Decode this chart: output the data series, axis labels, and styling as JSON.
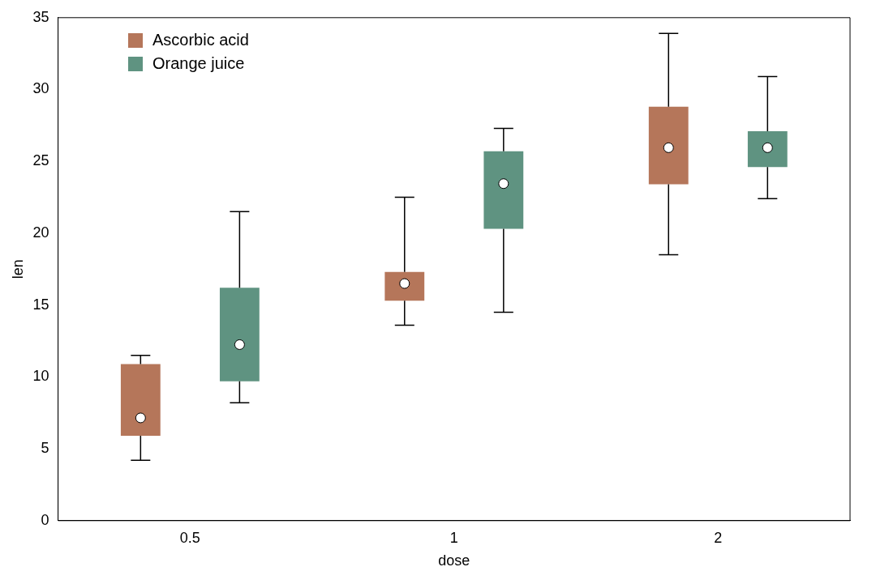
{
  "chart_data": {
    "type": "box",
    "xlabel": "dose",
    "ylabel": "len",
    "categories": [
      "0.5",
      "1",
      "2"
    ],
    "ylim": [
      0,
      35
    ],
    "yticks": [
      0,
      5,
      10,
      15,
      20,
      25,
      30,
      35
    ],
    "grid": false,
    "legend": "top left",
    "series": [
      {
        "name": "Ascorbic acid",
        "color": "#b5765a",
        "boxes": [
          {
            "low": 4.2,
            "q1": 5.9,
            "median": 7.15,
            "q3": 10.9,
            "high": 11.5
          },
          {
            "low": 13.6,
            "q1": 15.3,
            "median": 16.5,
            "q3": 17.3,
            "high": 22.5
          },
          {
            "low": 18.5,
            "q1": 23.4,
            "median": 25.95,
            "q3": 28.8,
            "high": 33.9
          }
        ]
      },
      {
        "name": "Orange juice",
        "color": "#5f9381",
        "boxes": [
          {
            "low": 8.2,
            "q1": 9.7,
            "median": 12.25,
            "q3": 16.2,
            "high": 21.5
          },
          {
            "low": 14.5,
            "q1": 20.3,
            "median": 23.45,
            "q3": 25.7,
            "high": 27.3
          },
          {
            "low": 22.4,
            "q1": 24.6,
            "median": 25.95,
            "q3": 27.1,
            "high": 30.9
          }
        ]
      }
    ]
  }
}
